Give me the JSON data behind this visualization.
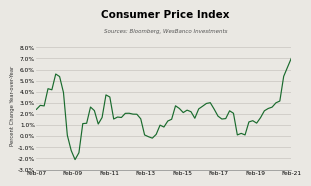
{
  "title": "Consumer Price Index",
  "subtitle": "Sources: Bloomberg, WesBanco Investments",
  "ylabel": "Percent Change Year-over-Year",
  "ylim": [
    -3.0,
    8.5
  ],
  "yticks": [
    -3.0,
    -2.0,
    -1.0,
    0.0,
    1.0,
    2.0,
    3.0,
    4.0,
    5.0,
    6.0,
    7.0,
    8.0
  ],
  "line_color": "#1a6b2e",
  "bg_color": "#eae8e3",
  "plot_bg_color": "#eae8e3",
  "x_labels": [
    "Feb-07",
    "Feb-09",
    "Feb-11",
    "Feb-13",
    "Feb-15",
    "Feb-17",
    "Feb-19",
    "Feb-21"
  ],
  "data": [
    2.42,
    2.78,
    2.73,
    4.28,
    4.18,
    5.6,
    5.37,
    3.94,
    0.09,
    -1.28,
    -2.1,
    -1.48,
    1.14,
    1.17,
    2.63,
    2.31,
    1.1,
    1.69,
    3.72,
    3.53,
    1.55,
    1.73,
    1.69,
    2.06,
    2.07,
    1.99,
    1.98,
    1.57,
    0.12,
    -0.04,
    -0.17,
    0.17,
    1.0,
    0.83,
    1.37,
    1.53,
    2.74,
    2.5,
    2.13,
    2.35,
    2.21,
    1.62,
    2.46,
    2.7,
    2.95,
    3.02,
    2.44,
    1.81,
    1.55,
    1.59,
    2.29,
    2.07,
    0.12,
    0.26,
    0.12,
    1.29,
    1.4,
    1.18,
    1.67,
    2.29,
    2.5,
    2.62,
    3.01,
    3.17,
    5.39,
    6.22,
    7.04
  ]
}
